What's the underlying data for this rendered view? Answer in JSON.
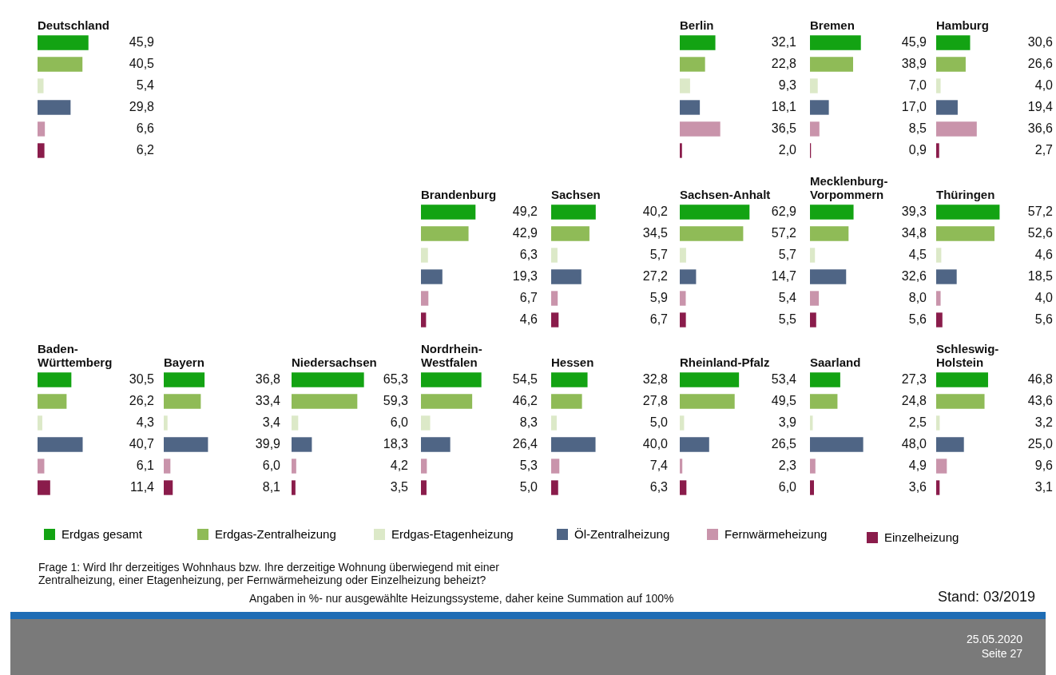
{
  "chart_data": [
    {
      "type": "bar",
      "orientation": "horizontal",
      "title": "Deutschland",
      "categories": [
        null,
        null,
        null,
        null,
        null,
        null
      ],
      "colors": [
        "#13a313",
        "#8fbb57",
        "#dce9c8",
        "#4f6585",
        "#c994ab",
        "#8a1c4b"
      ],
      "values": [
        45.9,
        40.5,
        5.4,
        29.8,
        6.6,
        6.2
      ],
      "value_labels": [
        "45,9",
        "40,5",
        "5,4",
        "29,8",
        "6,6",
        "6,2"
      ],
      "tick_labels": false,
      "annotations": [
        "Erdgas gesamt",
        "Erdgas-Zentralheizung",
        "Erdgas-Etagenheizung",
        "Öl-Zentralheizung",
        "Fernwärmeheizung",
        "Einzelheizung",
        "Frage 1: Wird Ihr derzeitiges Wohnhaus bzw. Ihre derzeitige Wohnung überwiegend mit einer Zentralheizung, einer Etagenheizung, per Fernwärmeheizung oder Einzelheizung beheizt?",
        "Angaben in %- nur ausgewählte Heizungssysteme, daher keine Summation auf 100%",
        "Stand: 03/2019",
        "25.05.2020",
        "Seite 27"
      ]
    },
    {
      "type": "bar",
      "orientation": "horizontal",
      "title": "Berlin",
      "categories": [
        null,
        null,
        null,
        null,
        null,
        null
      ],
      "colors": [
        "#13a313",
        "#8fbb57",
        "#dce9c8",
        "#4f6585",
        "#c994ab",
        "#8a1c4b"
      ],
      "values": [
        32.1,
        22.8,
        9.3,
        18.1,
        36.5,
        2.0
      ],
      "value_labels": [
        "32,1",
        "22,8",
        "9,3",
        "18,1",
        "36,5",
        "2,0"
      ],
      "tick_labels": false
    },
    {
      "type": "bar",
      "orientation": "horizontal",
      "title": "Bremen",
      "categories": [
        null,
        null,
        null,
        null,
        null,
        null
      ],
      "colors": [
        "#13a313",
        "#8fbb57",
        "#dce9c8",
        "#4f6585",
        "#c994ab",
        "#8a1c4b"
      ],
      "values": [
        45.9,
        38.9,
        7.0,
        17.0,
        8.5,
        0.9
      ],
      "value_labels": [
        "45,9",
        "38,9",
        "7,0",
        "17,0",
        "8,5",
        "0,9"
      ],
      "tick_labels": false
    },
    {
      "type": "bar",
      "orientation": "horizontal",
      "title": "Hamburg",
      "categories": [
        null,
        null,
        null,
        null,
        null,
        null
      ],
      "colors": [
        "#13a313",
        "#8fbb57",
        "#dce9c8",
        "#4f6585",
        "#c994ab",
        "#8a1c4b"
      ],
      "values": [
        30.6,
        26.6,
        4.0,
        19.4,
        36.6,
        2.7
      ],
      "value_labels": [
        "30,6",
        "26,6",
        "4,0",
        "19,4",
        "36,6",
        "2,7"
      ],
      "tick_labels": false
    },
    {
      "type": "bar",
      "orientation": "horizontal",
      "title": "Brandenburg",
      "categories": [
        null,
        null,
        null,
        null,
        null,
        null
      ],
      "colors": [
        "#13a313",
        "#8fbb57",
        "#dce9c8",
        "#4f6585",
        "#c994ab",
        "#8a1c4b"
      ],
      "values": [
        49.2,
        42.9,
        6.3,
        19.3,
        6.7,
        4.6
      ],
      "value_labels": [
        "49,2",
        "42,9",
        "6,3",
        "19,3",
        "6,7",
        "4,6"
      ],
      "tick_labels": false
    },
    {
      "type": "bar",
      "orientation": "horizontal",
      "title": "Sachsen",
      "categories": [
        null,
        null,
        null,
        null,
        null,
        null
      ],
      "colors": [
        "#13a313",
        "#8fbb57",
        "#dce9c8",
        "#4f6585",
        "#c994ab",
        "#8a1c4b"
      ],
      "values": [
        40.2,
        34.5,
        5.7,
        27.2,
        5.9,
        6.7
      ],
      "value_labels": [
        "40,2",
        "34,5",
        "5,7",
        "27,2",
        "5,9",
        "6,7"
      ],
      "tick_labels": false
    },
    {
      "type": "bar",
      "orientation": "horizontal",
      "title": "Sachsen-Anhalt",
      "categories": [
        null,
        null,
        null,
        null,
        null,
        null
      ],
      "colors": [
        "#13a313",
        "#8fbb57",
        "#dce9c8",
        "#4f6585",
        "#c994ab",
        "#8a1c4b"
      ],
      "values": [
        62.9,
        57.2,
        5.7,
        14.7,
        5.4,
        5.5
      ],
      "value_labels": [
        "62,9",
        "57,2",
        "5,7",
        "14,7",
        "5,4",
        "5,5"
      ],
      "tick_labels": false
    },
    {
      "type": "bar",
      "orientation": "horizontal",
      "title": "Mecklenburg-\nVorpommern",
      "categories": [
        null,
        null,
        null,
        null,
        null,
        null
      ],
      "colors": [
        "#13a313",
        "#8fbb57",
        "#dce9c8",
        "#4f6585",
        "#c994ab",
        "#8a1c4b"
      ],
      "values": [
        39.3,
        34.8,
        4.5,
        32.6,
        8.0,
        5.6
      ],
      "value_labels": [
        "39,3",
        "34,8",
        "4,5",
        "32,6",
        "8,0",
        "5,6"
      ],
      "tick_labels": false
    },
    {
      "type": "bar",
      "orientation": "horizontal",
      "title": "Thüringen",
      "categories": [
        null,
        null,
        null,
        null,
        null,
        null
      ],
      "colors": [
        "#13a313",
        "#8fbb57",
        "#dce9c8",
        "#4f6585",
        "#c994ab",
        "#8a1c4b"
      ],
      "values": [
        57.2,
        52.6,
        4.6,
        18.5,
        4.0,
        5.6
      ],
      "value_labels": [
        "57,2",
        "52,6",
        "4,6",
        "18,5",
        "4,0",
        "5,6"
      ],
      "tick_labels": false
    },
    {
      "type": "bar",
      "orientation": "horizontal",
      "title": "Baden-\nWürttemberg",
      "categories": [
        null,
        null,
        null,
        null,
        null,
        null
      ],
      "colors": [
        "#13a313",
        "#8fbb57",
        "#dce9c8",
        "#4f6585",
        "#c994ab",
        "#8a1c4b"
      ],
      "values": [
        30.5,
        26.2,
        4.3,
        40.7,
        6.1,
        11.4
      ],
      "value_labels": [
        "30,5",
        "26,2",
        "4,3",
        "40,7",
        "6,1",
        "11,4"
      ],
      "tick_labels": false
    },
    {
      "type": "bar",
      "orientation": "horizontal",
      "title": "Bayern",
      "categories": [
        null,
        null,
        null,
        null,
        null,
        null
      ],
      "colors": [
        "#13a313",
        "#8fbb57",
        "#dce9c8",
        "#4f6585",
        "#c994ab",
        "#8a1c4b"
      ],
      "values": [
        36.8,
        33.4,
        3.4,
        39.9,
        6.0,
        8.1
      ],
      "value_labels": [
        "36,8",
        "33,4",
        "3,4",
        "39,9",
        "6,0",
        "8,1"
      ],
      "tick_labels": false
    },
    {
      "type": "bar",
      "orientation": "horizontal",
      "title": "Niedersachsen",
      "categories": [
        null,
        null,
        null,
        null,
        null,
        null
      ],
      "colors": [
        "#13a313",
        "#8fbb57",
        "#dce9c8",
        "#4f6585",
        "#c994ab",
        "#8a1c4b"
      ],
      "values": [
        65.3,
        59.3,
        6.0,
        18.3,
        4.2,
        3.5
      ],
      "value_labels": [
        "65,3",
        "59,3",
        "6,0",
        "18,3",
        "4,2",
        "3,5"
      ],
      "tick_labels": false
    },
    {
      "type": "bar",
      "orientation": "horizontal",
      "title": "Nordrhein-\nWestfalen",
      "categories": [
        null,
        null,
        null,
        null,
        null,
        null
      ],
      "colors": [
        "#13a313",
        "#8fbb57",
        "#dce9c8",
        "#4f6585",
        "#c994ab",
        "#8a1c4b"
      ],
      "values": [
        54.5,
        46.2,
        8.3,
        26.4,
        5.3,
        5.0
      ],
      "value_labels": [
        "54,5",
        "46,2",
        "8,3",
        "26,4",
        "5,3",
        "5,0"
      ],
      "tick_labels": false
    },
    {
      "type": "bar",
      "orientation": "horizontal",
      "title": "Hessen",
      "categories": [
        null,
        null,
        null,
        null,
        null,
        null
      ],
      "colors": [
        "#13a313",
        "#8fbb57",
        "#dce9c8",
        "#4f6585",
        "#c994ab",
        "#8a1c4b"
      ],
      "values": [
        32.8,
        27.8,
        5.0,
        40.0,
        7.4,
        6.3
      ],
      "value_labels": [
        "32,8",
        "27,8",
        "5,0",
        "40,0",
        "7,4",
        "6,3"
      ],
      "tick_labels": false
    },
    {
      "type": "bar",
      "orientation": "horizontal",
      "title": "Rheinland-Pfalz",
      "categories": [
        null,
        null,
        null,
        null,
        null,
        null
      ],
      "colors": [
        "#13a313",
        "#8fbb57",
        "#dce9c8",
        "#4f6585",
        "#c994ab",
        "#8a1c4b"
      ],
      "values": [
        53.4,
        49.5,
        3.9,
        26.5,
        2.3,
        6.0
      ],
      "value_labels": [
        "53,4",
        "49,5",
        "3,9",
        "26,5",
        "2,3",
        "6,0"
      ],
      "tick_labels": false
    },
    {
      "type": "bar",
      "orientation": "horizontal",
      "title": "Saarland",
      "categories": [
        null,
        null,
        null,
        null,
        null,
        null
      ],
      "colors": [
        "#13a313",
        "#8fbb57",
        "#dce9c8",
        "#4f6585",
        "#c994ab",
        "#8a1c4b"
      ],
      "values": [
        27.3,
        24.8,
        2.5,
        48.0,
        4.9,
        3.6
      ],
      "value_labels": [
        "27,3",
        "24,8",
        "2,5",
        "48,0",
        "4,9",
        "3,6"
      ],
      "tick_labels": false
    },
    {
      "type": "bar",
      "orientation": "horizontal",
      "title": "Schleswig-\nHolstein",
      "categories": [
        null,
        null,
        null,
        null,
        null,
        null
      ],
      "colors": [
        "#13a313",
        "#8fbb57",
        "#dce9c8",
        "#4f6585",
        "#c994ab",
        "#8a1c4b"
      ],
      "values": [
        46.8,
        43.6,
        3.2,
        25.0,
        9.6,
        3.1
      ],
      "value_labels": [
        "46,8",
        "43,6",
        "3,2",
        "25,0",
        "9,6",
        "3,1"
      ],
      "tick_labels": false
    }
  ]
}
